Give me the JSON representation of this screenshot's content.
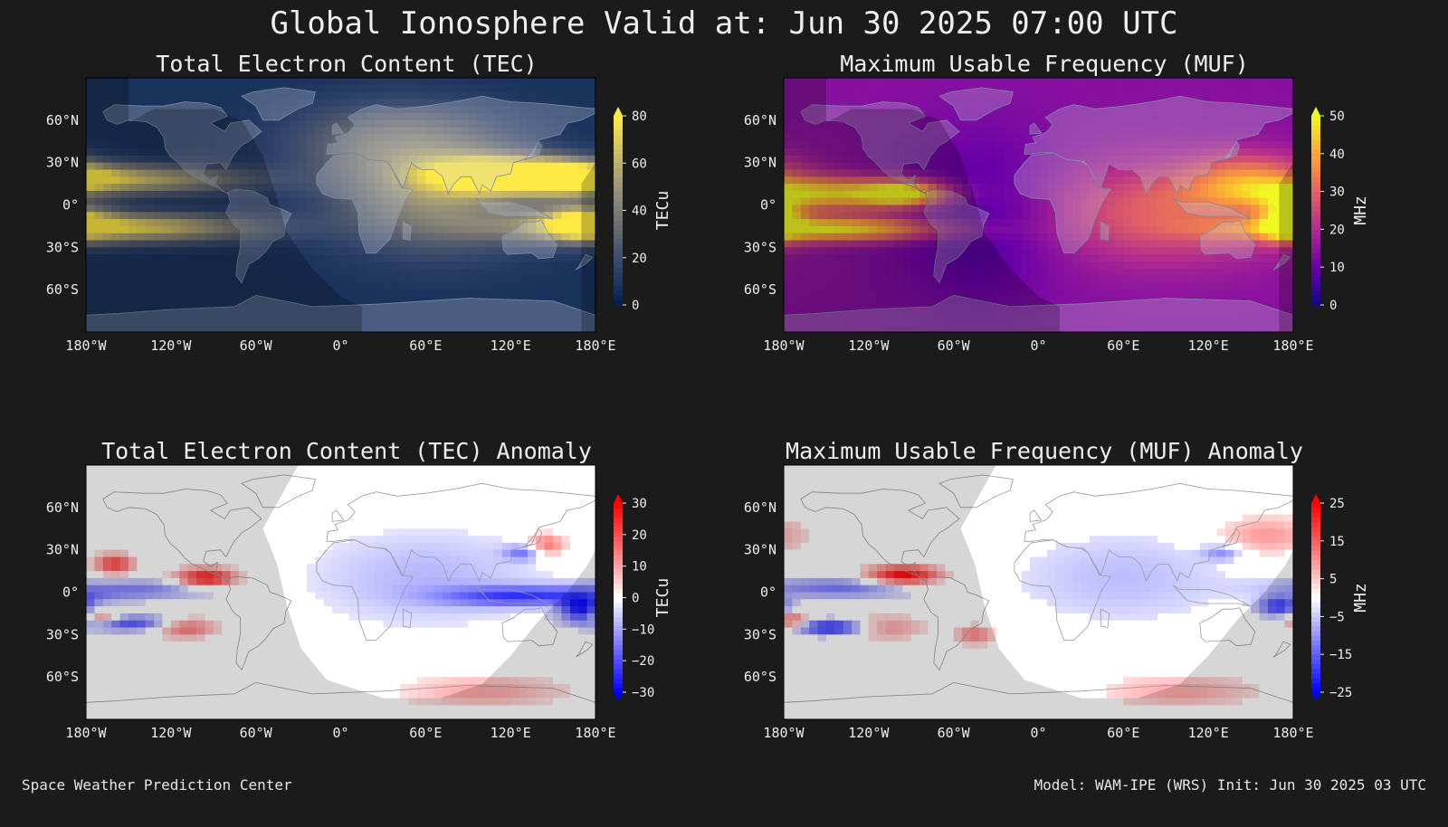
{
  "page": {
    "title": "Global Ionosphere Valid at: Jun 30 2025 07:00 UTC",
    "footer_left": "Space Weather Prediction Center",
    "footer_right": "Model: WAM-IPE (WRS) Init: Jun 30 2025 03 UTC"
  },
  "colors": {
    "background": "#1b1b1b",
    "text": "#eeeeee",
    "land": "#bfc7d6",
    "night_shade": "#000000"
  },
  "chart_data": [
    {
      "type": "heatmap",
      "title": "Total Electron Content (TEC)",
      "colormap": "cividis",
      "colorbar": {
        "label": "TECu",
        "ticks": [
          0,
          20,
          40,
          60,
          80
        ],
        "range": [
          0,
          80
        ],
        "extend": "max",
        "stops": [
          "#00204d",
          "#31446b",
          "#666970",
          "#958f78",
          "#cbba69",
          "#ffe945"
        ]
      },
      "x_ticks": [
        "180°W",
        "120°W",
        "60°W",
        "0°",
        "60°E",
        "120°E",
        "180°E"
      ],
      "y_ticks": [
        "60°N",
        "30°N",
        "0°",
        "30°S",
        "60°S"
      ],
      "xlim": [
        -180,
        180
      ],
      "ylim": [
        -90,
        90
      ],
      "base_value": 8,
      "blobs": [
        {
          "lon": -150,
          "lat": 18,
          "value": 55,
          "sx": 55,
          "sy": 7
        },
        {
          "lon": -150,
          "lat": -16,
          "value": 65,
          "sx": 60,
          "sy": 7
        },
        {
          "lon": 110,
          "lat": 22,
          "value": 68,
          "sx": 35,
          "sy": 9
        },
        {
          "lon": 160,
          "lat": 20,
          "value": 62,
          "sx": 25,
          "sy": 8
        },
        {
          "lon": 170,
          "lat": -12,
          "value": 55,
          "sx": 20,
          "sy": 9
        },
        {
          "lon": 70,
          "lat": 5,
          "value": 40,
          "sx": 50,
          "sy": 25
        },
        {
          "lon": 40,
          "lat": 45,
          "value": 28,
          "sx": 50,
          "sy": 20
        }
      ]
    },
    {
      "type": "heatmap",
      "title": "Maximum Usable Frequency (MUF)",
      "colormap": "plasma",
      "colorbar": {
        "label": "MHz",
        "ticks": [
          0,
          10,
          20,
          30,
          40,
          50
        ],
        "range": [
          0,
          50
        ],
        "extend": "max",
        "stops": [
          "#0d0887",
          "#6a00a8",
          "#b12a90",
          "#e16462",
          "#fca636",
          "#f0f921"
        ]
      },
      "x_ticks": [
        "180°W",
        "120°W",
        "60°W",
        "0°",
        "60°E",
        "120°E",
        "180°E"
      ],
      "y_ticks": [
        "60°N",
        "30°N",
        "0°",
        "30°S",
        "60°S"
      ],
      "xlim": [
        -180,
        180
      ],
      "ylim": [
        -90,
        90
      ],
      "base_value": 14,
      "blobs": [
        {
          "lon": -150,
          "lat": 8,
          "value": 30,
          "sx": 50,
          "sy": 8
        },
        {
          "lon": -95,
          "lat": 8,
          "value": 30,
          "sx": 20,
          "sy": 6
        },
        {
          "lon": -145,
          "lat": -17,
          "value": 34,
          "sx": 55,
          "sy": 6
        },
        {
          "lon": -40,
          "lat": -10,
          "value": -8,
          "sx": 40,
          "sy": 40
        },
        {
          "lon": 90,
          "lat": -5,
          "value": 16,
          "sx": 60,
          "sy": 25
        },
        {
          "lon": 150,
          "lat": 20,
          "value": 16,
          "sx": 30,
          "sy": 12
        },
        {
          "lon": 175,
          "lat": -10,
          "value": 28,
          "sx": 12,
          "sy": 10
        }
      ]
    },
    {
      "type": "heatmap",
      "title": "Total Electron Content (TEC) Anomaly",
      "colormap": "bwr",
      "colorbar": {
        "label": "TECu",
        "ticks": [
          -30,
          -20,
          -10,
          0,
          10,
          20,
          30
        ],
        "range": [
          -30,
          30
        ],
        "extend": "both",
        "stops": [
          "#0000ff",
          "#7777ff",
          "#ffffff",
          "#ff7777",
          "#ff0000"
        ]
      },
      "x_ticks": [
        "180°W",
        "120°W",
        "60°W",
        "0°",
        "60°E",
        "120°E",
        "180°E"
      ],
      "y_ticks": [
        "60°N",
        "30°N",
        "0°",
        "30°S",
        "60°S"
      ],
      "xlim": [
        -180,
        180
      ],
      "ylim": [
        -90,
        90
      ],
      "base_value": 0,
      "blobs": [
        {
          "lon": -160,
          "lat": 20,
          "value": 22,
          "sx": 10,
          "sy": 5
        },
        {
          "lon": -95,
          "lat": 10,
          "value": 28,
          "sx": 15,
          "sy": 5
        },
        {
          "lon": -140,
          "lat": 2,
          "value": -12,
          "sx": 40,
          "sy": 5
        },
        {
          "lon": -150,
          "lat": -22,
          "value": -20,
          "sx": 25,
          "sy": 4
        },
        {
          "lon": -110,
          "lat": -25,
          "value": 18,
          "sx": 15,
          "sy": 5
        },
        {
          "lon": -170,
          "lat": -18,
          "value": 18,
          "sx": 10,
          "sy": 4
        },
        {
          "lon": 60,
          "lat": 10,
          "value": -8,
          "sx": 60,
          "sy": 25
        },
        {
          "lon": 130,
          "lat": -3,
          "value": -20,
          "sx": 40,
          "sy": 5
        },
        {
          "lon": 170,
          "lat": -12,
          "value": -25,
          "sx": 10,
          "sy": 6
        },
        {
          "lon": 145,
          "lat": 33,
          "value": 18,
          "sx": 10,
          "sy": 6
        },
        {
          "lon": 130,
          "lat": 28,
          "value": -15,
          "sx": 10,
          "sy": 4
        },
        {
          "lon": 100,
          "lat": -70,
          "value": 10,
          "sx": 40,
          "sy": 8
        }
      ]
    },
    {
      "type": "heatmap",
      "title": "Maximum Usable Frequency (MUF) Anomaly",
      "colormap": "bwr",
      "colorbar": {
        "label": "MHz",
        "ticks": [
          -25,
          -15,
          -5,
          5,
          15,
          25
        ],
        "range": [
          -25,
          25
        ],
        "extend": "both",
        "stops": [
          "#0000ff",
          "#7777ff",
          "#ffffff",
          "#ff7777",
          "#ff0000"
        ]
      },
      "x_ticks": [
        "180°W",
        "120°W",
        "60°W",
        "0°",
        "60°E",
        "120°E",
        "180°E"
      ],
      "y_ticks": [
        "60°N",
        "30°N",
        "0°",
        "30°S",
        "60°S"
      ],
      "xlim": [
        -180,
        180
      ],
      "ylim": [
        -90,
        90
      ],
      "base_value": 0,
      "blobs": [
        {
          "lon": -95,
          "lat": 12,
          "value": 25,
          "sx": 18,
          "sy": 5
        },
        {
          "lon": -140,
          "lat": 3,
          "value": -12,
          "sx": 40,
          "sy": 5
        },
        {
          "lon": -145,
          "lat": -25,
          "value": -22,
          "sx": 18,
          "sy": 4
        },
        {
          "lon": -175,
          "lat": -20,
          "value": 16,
          "sx": 8,
          "sy": 4
        },
        {
          "lon": -110,
          "lat": -25,
          "value": 10,
          "sx": 20,
          "sy": 6
        },
        {
          "lon": -45,
          "lat": -30,
          "value": 12,
          "sx": 10,
          "sy": 5
        },
        {
          "lon": 60,
          "lat": 10,
          "value": -6,
          "sx": 60,
          "sy": 25
        },
        {
          "lon": 170,
          "lat": -10,
          "value": -18,
          "sx": 10,
          "sy": 5
        },
        {
          "lon": 160,
          "lat": 40,
          "value": 10,
          "sx": 25,
          "sy": 10
        },
        {
          "lon": 130,
          "lat": 28,
          "value": -10,
          "sx": 10,
          "sy": 4
        },
        {
          "lon": 100,
          "lat": -70,
          "value": 8,
          "sx": 40,
          "sy": 8
        }
      ]
    }
  ]
}
